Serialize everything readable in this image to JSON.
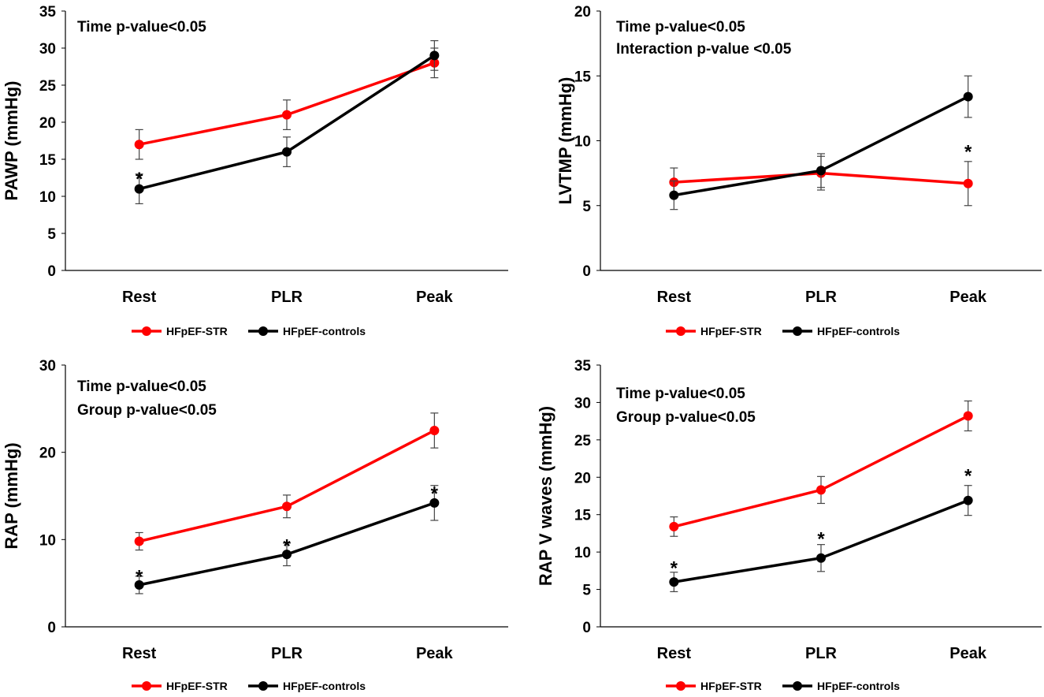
{
  "chart_data": [
    {
      "type": "line",
      "id": "pawp",
      "ylabel": "PAWP (mmHg)",
      "ylim": [
        0,
        35
      ],
      "yticks": [
        0,
        5,
        10,
        15,
        20,
        25,
        30,
        35
      ],
      "categories": [
        "Rest",
        "PLR",
        "Peak"
      ],
      "annotations": [
        "Time p-value<0.05"
      ],
      "series": [
        {
          "name": "HFpEF-STR",
          "color": "#ff0000",
          "values": [
            17,
            21,
            28
          ],
          "errors": [
            2,
            2,
            2
          ]
        },
        {
          "name": "HFpEF-controls",
          "color": "#000000",
          "values": [
            11,
            16,
            29
          ],
          "errors": [
            2,
            2,
            2
          ]
        }
      ],
      "significance": [
        {
          "category": "Rest",
          "label": "*",
          "value": 13
        }
      ],
      "legend_position": "bottom"
    },
    {
      "type": "line",
      "id": "lvtmp",
      "ylabel": "LVTMP (mmHg)",
      "ylim": [
        0,
        20
      ],
      "yticks": [
        0,
        5,
        10,
        15,
        20
      ],
      "categories": [
        "Rest",
        "PLR",
        "Peak"
      ],
      "annotations": [
        "Time p-value<0.05",
        "Interaction p-value <0.05"
      ],
      "series": [
        {
          "name": "HFpEF-STR",
          "color": "#ff0000",
          "values": [
            6.8,
            7.5,
            6.7
          ],
          "errors": [
            1.1,
            1.3,
            1.7
          ]
        },
        {
          "name": "HFpEF-controls",
          "color": "#000000",
          "values": [
            5.8,
            7.7,
            13.4
          ],
          "errors": [
            1.1,
            1.3,
            1.6
          ]
        }
      ],
      "significance": [
        {
          "category": "Peak",
          "label": "*",
          "value": 9.5
        }
      ],
      "legend_position": "bottom"
    },
    {
      "type": "line",
      "id": "rap",
      "ylabel": "RAP (mmHg)",
      "ylim": [
        0,
        30
      ],
      "yticks": [
        0,
        10,
        20,
        30
      ],
      "categories": [
        "Rest",
        "PLR",
        "Peak"
      ],
      "annotations": [
        "Time p-value<0.05",
        "Group p-value<0.05"
      ],
      "series": [
        {
          "name": "HFpEF-STR",
          "color": "#ff0000",
          "values": [
            9.8,
            13.8,
            22.5
          ],
          "errors": [
            1,
            1.3,
            2
          ]
        },
        {
          "name": "HFpEF-controls",
          "color": "#000000",
          "values": [
            4.8,
            8.3,
            14.2
          ],
          "errors": [
            1,
            1.3,
            2
          ]
        }
      ],
      "significance": [
        {
          "category": "Rest",
          "label": "*",
          "value": 6.3
        },
        {
          "category": "PLR",
          "label": "*",
          "value": 9.8
        },
        {
          "category": "Peak",
          "label": "*",
          "value": 15.8
        }
      ],
      "legend_position": "bottom"
    },
    {
      "type": "line",
      "id": "rapv",
      "ylabel": "RAP V waves (mmHg)",
      "ylim": [
        0,
        35
      ],
      "yticks": [
        0,
        5,
        10,
        15,
        20,
        25,
        30,
        35
      ],
      "categories": [
        "Rest",
        "PLR",
        "Peak"
      ],
      "annotations": [
        "Time p-value<0.05",
        "Group p-value<0.05"
      ],
      "series": [
        {
          "name": "HFpEF-STR",
          "color": "#ff0000",
          "values": [
            13.4,
            18.3,
            28.2
          ],
          "errors": [
            1.3,
            1.8,
            2
          ]
        },
        {
          "name": "HFpEF-controls",
          "color": "#000000",
          "values": [
            6,
            9.2,
            16.9
          ],
          "errors": [
            1.3,
            1.8,
            2
          ]
        }
      ],
      "significance": [
        {
          "category": "Rest",
          "label": "*",
          "value": 8.5
        },
        {
          "category": "PLR",
          "label": "*",
          "value": 12.4
        },
        {
          "category": "Peak",
          "label": "*",
          "value": 20.8
        }
      ],
      "legend_position": "bottom"
    }
  ]
}
